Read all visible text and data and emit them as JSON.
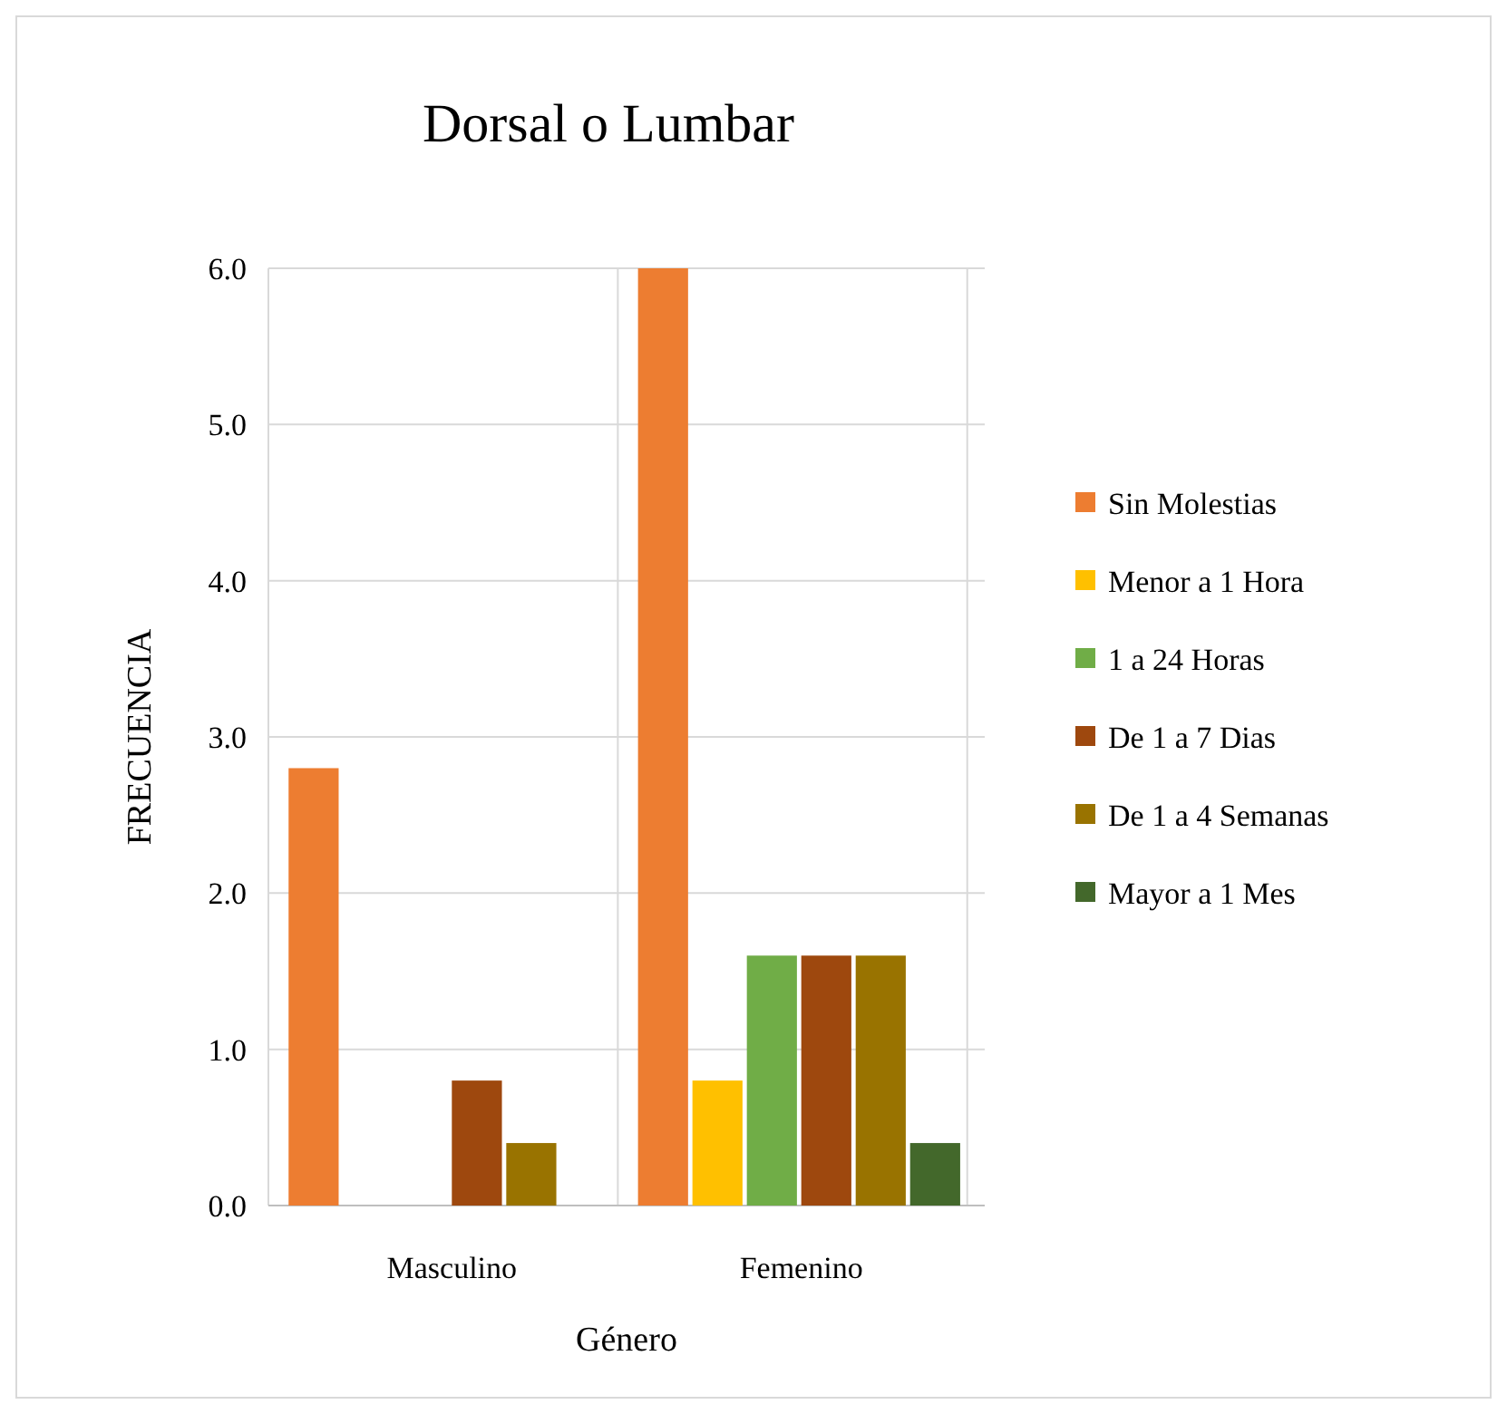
{
  "chart_data": {
    "type": "bar",
    "title": "Dorsal o Lumbar",
    "xlabel": "Género",
    "ylabel": "FRECUENCIA",
    "categories": [
      "Masculino",
      "Femenino"
    ],
    "series": [
      {
        "name": "Sin Molestias",
        "color": "#ed7d31",
        "values": [
          2.8,
          6.0
        ]
      },
      {
        "name": "Menor a 1 Hora",
        "color": "#ffc000",
        "values": [
          0,
          0.8
        ]
      },
      {
        "name": "1 a 24 Horas",
        "color": "#70ad47",
        "values": [
          0,
          1.6
        ]
      },
      {
        "name": "De 1 a 7 Dias",
        "color": "#9e480e",
        "values": [
          0.8,
          1.6
        ]
      },
      {
        "name": "De 1 a 4 Semanas",
        "color": "#997300",
        "values": [
          0.4,
          1.6
        ]
      },
      {
        "name": "Mayor a 1 Mes",
        "color": "#43682b",
        "values": [
          0,
          0.4
        ]
      }
    ],
    "ylim": [
      0,
      6
    ],
    "yticks": [
      {
        "value": 0,
        "label": "0.0"
      },
      {
        "value": 1,
        "label": "1.0"
      },
      {
        "value": 2,
        "label": "2.0"
      },
      {
        "value": 3,
        "label": "3.0"
      },
      {
        "value": 4,
        "label": "4.0"
      },
      {
        "value": 5,
        "label": "5.0"
      },
      {
        "value": 6,
        "label": "6.0"
      }
    ],
    "grid": true,
    "legend": "right"
  }
}
